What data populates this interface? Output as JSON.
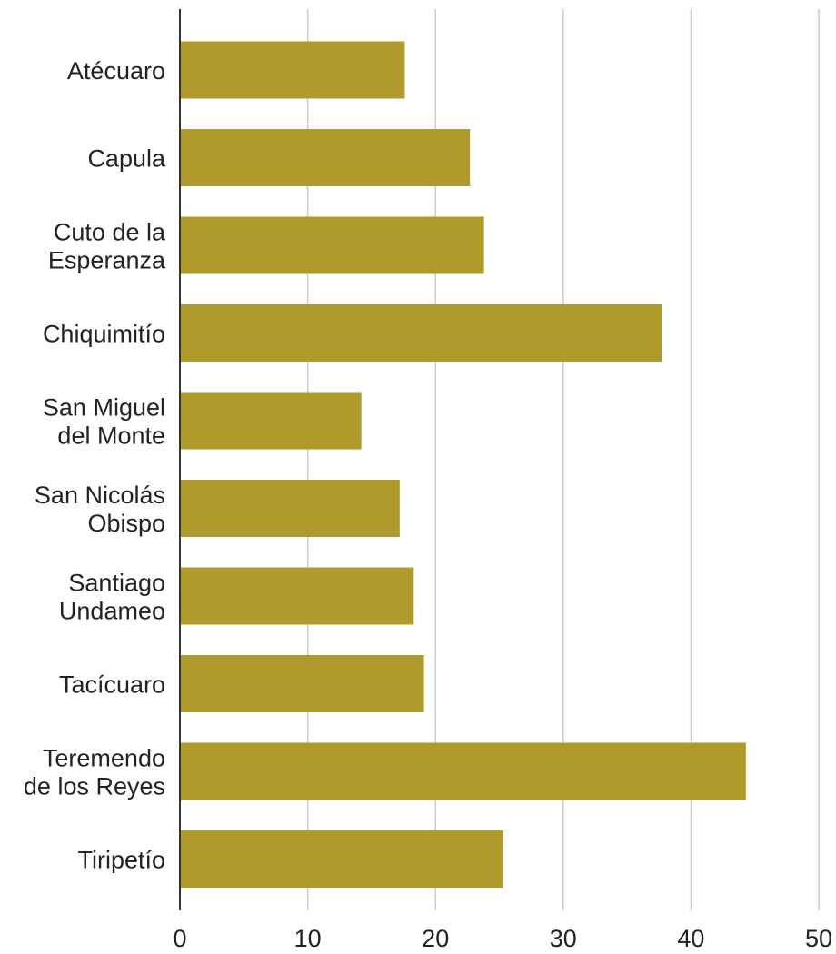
{
  "chart_data": {
    "type": "bar",
    "orientation": "horizontal",
    "categories": [
      [
        "Atécuaro"
      ],
      [
        "Capula"
      ],
      [
        "Cuto de la",
        "Esperanza"
      ],
      [
        "Chiquimitío"
      ],
      [
        "San Miguel",
        "del Monte"
      ],
      [
        "San Nicolás",
        "Obispo"
      ],
      [
        "Santiago",
        "Undameo"
      ],
      [
        "Tacícuaro"
      ],
      [
        "Teremendo",
        "de los Reyes"
      ],
      [
        "Tiripetío"
      ]
    ],
    "values": [
      17.6,
      22.7,
      23.8,
      37.7,
      14.2,
      17.2,
      18.3,
      19.1,
      44.3,
      25.3
    ],
    "xlim": [
      0,
      50
    ],
    "xticks": [
      0,
      10,
      20,
      30,
      40,
      50
    ],
    "tick_labels": [
      "0",
      "10",
      "20",
      "30",
      "40",
      "50"
    ],
    "grid": true,
    "title": "",
    "xlabel": "",
    "ylabel": "",
    "colors": {
      "bar": "#B09A2B",
      "grid": "#CCCCCC",
      "axis": "#333333",
      "text": "#222222"
    }
  }
}
